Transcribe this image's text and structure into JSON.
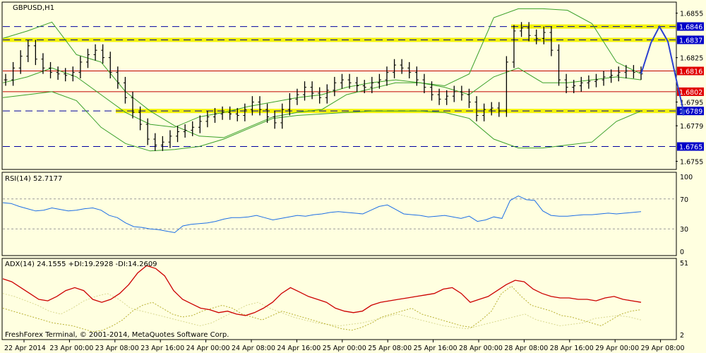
{
  "chart_data": [
    {
      "type": "line",
      "title": "GBPUSD,H1",
      "ylim": [
        1.675,
        1.6862
      ],
      "y_ticks": [
        "1.6855",
        "1.6825",
        "1.6795",
        "1.6779",
        "1.6755"
      ],
      "levels": [
        {
          "value": 1.6846,
          "label": "1.6846",
          "style": "dashed-blue",
          "zone": true
        },
        {
          "value": 1.6837,
          "label": "1.6837",
          "style": "dashed-blue",
          "zone": true
        },
        {
          "value": 1.6816,
          "label": "1.6816",
          "style": "solid-red"
        },
        {
          "value": 1.6802,
          "label": "1.6802",
          "style": "solid-red"
        },
        {
          "value": 1.6789,
          "label": "1.6789",
          "style": "dashed-blue",
          "zone": true
        },
        {
          "value": 1.6765,
          "label": "1.6765",
          "style": "dashed-blue"
        }
      ],
      "series": [
        {
          "name": "",
          "values": [
            1.681,
            1.6818,
            1.6826,
            1.6833,
            1.6824,
            1.6818,
            1.6815,
            1.6814,
            1.6813,
            1.6815,
            1.6822,
            1.6827,
            1.683,
            1.6825,
            1.6815,
            1.6808,
            1.6798,
            1.6788,
            1.678,
            1.677,
            1.6766,
            1.6768,
            1.6772,
            1.6775,
            1.6776,
            1.6778,
            1.6782,
            1.6785,
            1.6787,
            1.6788,
            1.6787,
            1.6786,
            1.679,
            1.6795,
            1.679,
            1.6785,
            1.6781,
            1.679,
            1.6797,
            1.68,
            1.6805,
            1.6801,
            1.6798,
            1.6803,
            1.6808,
            1.681,
            1.6808,
            1.6806,
            1.6805,
            1.6808,
            1.681,
            1.6815,
            1.682,
            1.6818,
            1.6815,
            1.681,
            1.6805,
            1.68,
            1.6797,
            1.6799,
            1.6802,
            1.68,
            1.6795,
            1.6786,
            1.679,
            1.6791,
            1.6789,
            1.6822,
            1.6843,
            1.6845,
            1.684,
            1.6838,
            1.6842,
            1.683,
            1.681,
            1.6805,
            1.6806,
            1.6808,
            1.6809,
            1.681,
            1.6812,
            1.6813,
            1.6815,
            1.6816,
            1.6815,
            1.6814
          ]
        },
        {
          "name": "",
          "values": [
            1.6838,
            1.6843,
            1.6849,
            1.6827,
            1.6822,
            1.6802,
            1.6789,
            1.6779,
            1.6772,
            1.6771,
            1.6778,
            1.6785,
            1.6788,
            1.679,
            1.68,
            1.6804,
            1.6808,
            1.6808,
            1.6806,
            1.6814,
            1.6852,
            1.6858,
            1.6858,
            1.6857,
            1.6848,
            1.6822,
            1.6814
          ]
        },
        {
          "name": "",
          "values": [
            1.6798,
            1.68,
            1.6802,
            1.6796,
            1.6778,
            1.6767,
            1.6762,
            1.6763,
            1.6765,
            1.677,
            1.6777,
            1.6784,
            1.6786,
            1.6787,
            1.6788,
            1.6789,
            1.6789,
            1.6789,
            1.6788,
            1.6784,
            1.677,
            1.6764,
            1.6764,
            1.6766,
            1.6768,
            1.6782,
            1.6789
          ]
        },
        {
          "name": "",
          "values": [
            1.6808,
            1.6812,
            1.6818,
            1.6812,
            1.68,
            1.6788,
            1.678,
            1.6778,
            1.6785,
            1.6788,
            1.6792,
            1.6795,
            1.6798,
            1.68,
            1.6805,
            1.6808,
            1.681,
            1.6808,
            1.6805,
            1.68,
            1.6812,
            1.6818,
            1.6808,
            1.6808,
            1.681,
            1.6812,
            1.681
          ]
        },
        {
          "name": "",
          "values": [
            1.6814,
            1.6835,
            1.6846,
            1.6836,
            1.681,
            1.6789
          ]
        }
      ],
      "x_ticks": [
        "22 Apr 2014",
        "23 Apr 00:00",
        "23 Apr 08:00",
        "23 Apr 16:00",
        "24 Apr 00:00",
        "24 Apr 08:00",
        "24 Apr 16:00",
        "25 Apr 00:00",
        "25 Apr 08:00",
        "25 Apr 16:00",
        "28 Apr 00:00",
        "28 Apr 08:00",
        "28 Apr 16:00",
        "29 Apr 00:00",
        "29 Apr 08:00"
      ],
      "legend": "none",
      "grid": false
    },
    {
      "type": "line",
      "title": "RSI(14) 52.7177",
      "ylim": [
        0,
        100
      ],
      "y_ticks": [
        "100",
        "70",
        "30",
        "0"
      ],
      "levels": [
        70,
        30
      ],
      "series": [
        {
          "name": "",
          "values": [
            65,
            64,
            60,
            57,
            54,
            55,
            58,
            56,
            54,
            55,
            57,
            58,
            55,
            48,
            45,
            38,
            33,
            32,
            30,
            29,
            27,
            25,
            34,
            36,
            37,
            38,
            40,
            43,
            45,
            45,
            46,
            48,
            45,
            42,
            44,
            46,
            48,
            47,
            49,
            50,
            52,
            53,
            52,
            51,
            50,
            55,
            60,
            62,
            56,
            50,
            49,
            48,
            46,
            47,
            48,
            46,
            44,
            47,
            40,
            42,
            46,
            44,
            68,
            74,
            69,
            68,
            54,
            48,
            47,
            47,
            48,
            49,
            49,
            50,
            51,
            50,
            51,
            52,
            53
          ]
        }
      ],
      "colors": {
        "rsi": "#1e6fe6"
      },
      "legend": "none"
    },
    {
      "type": "line",
      "title": "ADX(14) 24.1555 +DI:19.2928 -DI:14.2609",
      "ylim": [
        2,
        51
      ],
      "y_ticks": [
        "51",
        "2"
      ],
      "series": [
        {
          "name": "",
          "values": [
            40,
            38,
            34,
            30,
            26,
            25,
            28,
            32,
            34,
            32,
            26,
            24,
            26,
            30,
            36,
            44,
            49,
            47,
            42,
            32,
            26,
            23,
            20,
            19,
            17,
            18,
            16,
            15,
            17,
            20,
            24,
            30,
            34,
            31,
            28,
            26,
            24,
            20,
            18,
            17,
            18,
            22,
            24,
            25,
            26,
            27,
            28,
            29,
            30,
            33,
            34,
            30,
            24,
            26,
            28,
            32,
            36,
            39,
            38,
            33,
            30,
            28,
            27,
            27,
            26,
            26,
            25,
            27,
            28,
            26,
            25,
            24
          ]
        },
        {
          "name": "",
          "values": [
            20,
            18,
            16,
            14,
            12,
            10,
            9,
            8,
            6,
            4,
            5,
            8,
            12,
            18,
            22,
            24,
            20,
            16,
            14,
            15,
            18,
            20,
            22,
            20,
            16,
            14,
            12,
            15,
            18,
            16,
            14,
            12,
            10,
            8,
            6,
            5,
            7,
            10,
            14,
            16,
            18,
            20,
            16,
            14,
            12,
            10,
            8,
            7,
            12,
            18,
            30,
            35,
            28,
            22,
            20,
            18,
            15,
            14,
            12,
            10,
            8,
            12,
            16,
            18,
            19
          ]
        },
        {
          "name": "",
          "values": [
            30,
            28,
            25,
            22,
            18,
            16,
            20,
            25,
            28,
            30,
            26,
            20,
            18,
            16,
            14,
            12,
            10,
            8,
            10,
            14,
            18,
            22,
            24,
            20,
            17,
            14,
            12,
            10,
            9,
            8,
            9,
            10,
            12,
            14,
            16,
            14,
            12,
            10,
            8,
            7,
            6,
            8,
            10,
            12,
            14,
            16,
            12,
            10,
            8,
            9,
            10,
            13,
            14,
            15,
            14,
            12
          ]
        }
      ],
      "legend": "none"
    }
  ],
  "footer": "FreshForex Terminal, © 2001-2014, MetaQuotes Software Corp."
}
